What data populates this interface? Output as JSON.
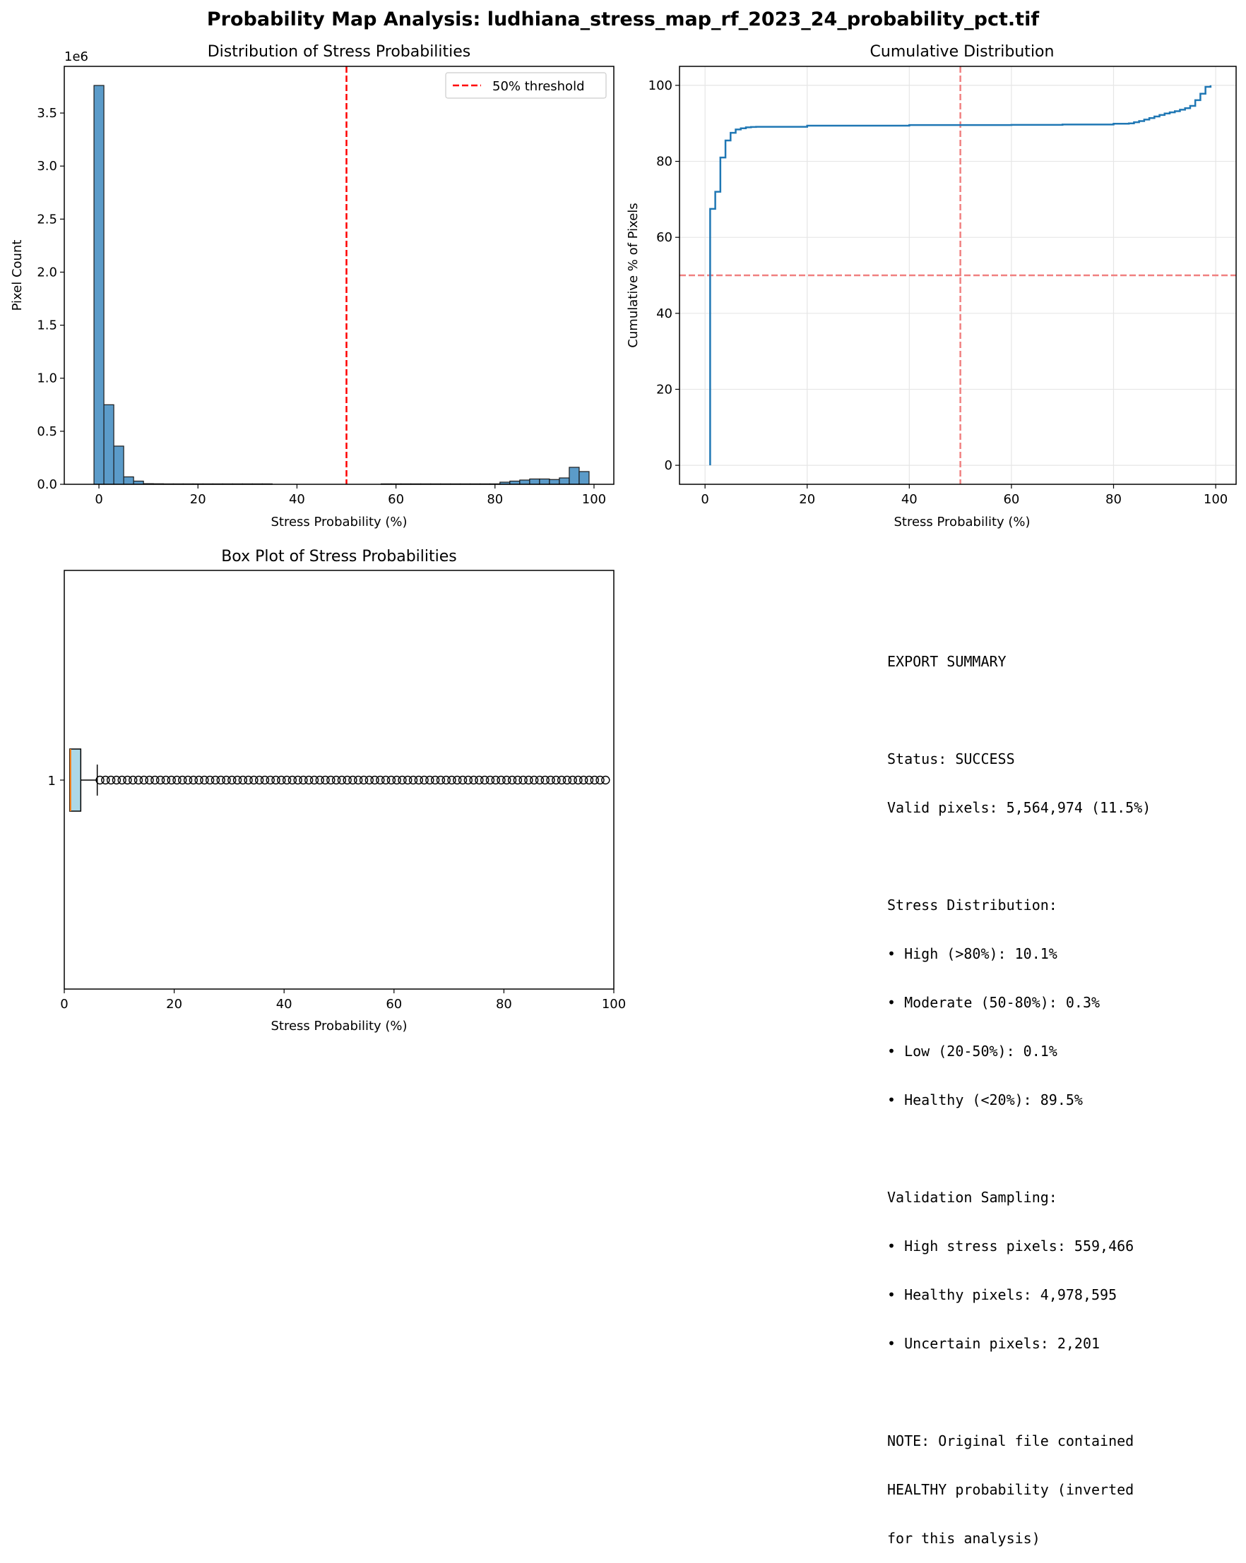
{
  "figure_title": "Probability Map Analysis: ludhiana_stress_map_rf_2023_24_probability_pct.tif",
  "chart_data": [
    {
      "type": "bar",
      "title": "Distribution of Stress Probabilities",
      "xlabel": "Stress Probability (%)",
      "ylabel": "Pixel Count",
      "offset_label": "1e6",
      "xlim": [
        -7,
        104
      ],
      "ylim": [
        0,
        3.94
      ],
      "xticks": [
        "0",
        "20",
        "40",
        "60",
        "80",
        "100"
      ],
      "yticks": [
        "0.0",
        "0.5",
        "1.0",
        "1.5",
        "2.0",
        "2.5",
        "3.0",
        "3.5"
      ],
      "bin_start": -1,
      "bin_width": 2,
      "values": [
        3.76,
        0.75,
        0.36,
        0.07,
        0.03,
        0.006,
        0.005,
        0.004,
        0.004,
        0.004,
        0.004,
        0.004,
        0.004,
        0.004,
        0.004,
        0.004,
        0.004,
        0.004,
        0,
        0,
        0,
        0,
        0,
        0,
        0,
        0,
        0,
        0,
        0,
        0.004,
        0.004,
        0.004,
        0.004,
        0.004,
        0.004,
        0.004,
        0.004,
        0.004,
        0.004,
        0.004,
        0.004,
        0.02,
        0.03,
        0.04,
        0.05,
        0.05,
        0.045,
        0.06,
        0.16,
        0.12
      ],
      "bar_color": "#5b9bc9",
      "edge_color": "#1a1a1a",
      "threshold": {
        "x": 50,
        "label": "50% threshold",
        "color": "#ff0000"
      }
    },
    {
      "type": "line",
      "title": "Cumulative Distribution",
      "xlabel": "Stress Probability (%)",
      "ylabel": "Cumulative % of Pixels",
      "xlim": [
        -5,
        104
      ],
      "ylim": [
        -5,
        105
      ],
      "xticks": [
        "0",
        "20",
        "40",
        "60",
        "80",
        "100"
      ],
      "yticks": [
        "0",
        "20",
        "40",
        "60",
        "80",
        "100"
      ],
      "x": [
        1,
        1,
        2,
        3,
        4,
        5,
        6,
        7,
        8,
        9,
        10,
        20,
        40,
        60,
        70,
        80,
        83,
        84,
        85,
        86,
        87,
        88,
        89,
        90,
        91,
        92,
        93,
        94,
        95,
        96,
        97,
        98,
        99
      ],
      "y": [
        0,
        67.5,
        72,
        81,
        85.5,
        87.5,
        88.4,
        88.7,
        88.95,
        89.05,
        89.1,
        89.4,
        89.55,
        89.6,
        89.7,
        89.9,
        90.0,
        90.3,
        90.6,
        91.0,
        91.4,
        91.8,
        92.2,
        92.6,
        92.9,
        93.2,
        93.6,
        94.0,
        94.6,
        96.1,
        97.8,
        99.6,
        100
      ],
      "line_color": "#1f77b4",
      "ref_x": 50,
      "ref_y": 50,
      "ref_color": "#f08080"
    },
    {
      "type": "box",
      "title": "Box Plot of Stress Probabilities",
      "xlabel": "Stress Probability (%)",
      "xlim": [
        0,
        100
      ],
      "xticks": [
        "0",
        "20",
        "40",
        "60",
        "80",
        "100"
      ],
      "category": "1",
      "whisker_low": 1,
      "q1": 1,
      "median": 1,
      "q3": 3,
      "whisker_high": 6,
      "outlier_start": 6.5,
      "outlier_end": 99,
      "outlier_step": 1,
      "box_color": "#add8e6",
      "median_color": "#ff7f0e"
    }
  ],
  "summary_lines": [
    "EXPORT SUMMARY",
    "",
    "Status: SUCCESS",
    "Valid pixels: 5,564,974 (11.5%)",
    "",
    "Stress Distribution:",
    "• High (>80%): 10.1%",
    "• Moderate (50-80%): 0.3%",
    "• Low (20-50%): 0.1%",
    "• Healthy (<20%): 89.5%",
    "",
    "Validation Sampling:",
    "• High stress pixels: 559,466",
    "• Healthy pixels: 4,978,595",
    "• Uncertain pixels: 2,201",
    "",
    "NOTE: Original file contained",
    "HEALTHY probability (inverted",
    "for this analysis)"
  ]
}
